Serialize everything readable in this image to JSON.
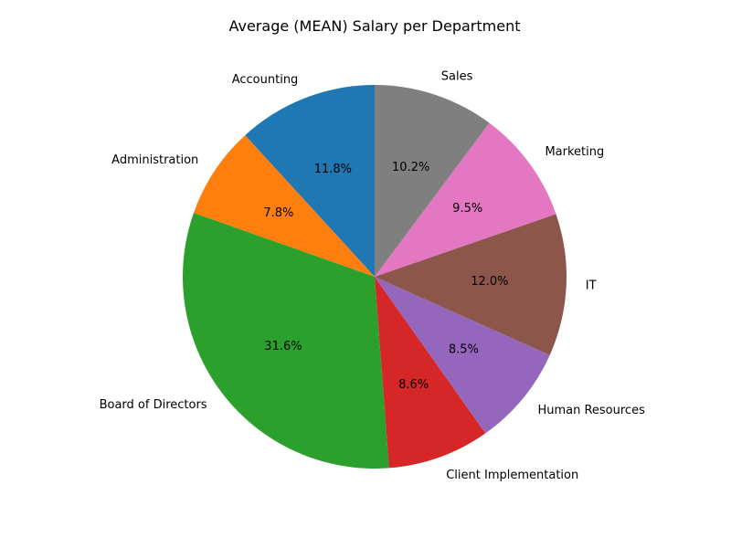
{
  "chart_data": {
    "type": "pie",
    "title": "Average (MEAN) Salary per Department",
    "start_angle_deg": 90,
    "direction": "counterclockwise",
    "legend": "none",
    "slices": [
      {
        "label": "Accounting",
        "value": 11.8,
        "pct_label": "11.8%",
        "color": "#1f77b4"
      },
      {
        "label": "Administration",
        "value": 7.8,
        "pct_label": "7.8%",
        "color": "#ff7f0e"
      },
      {
        "label": "Board of Directors",
        "value": 31.6,
        "pct_label": "31.6%",
        "color": "#2ca02c"
      },
      {
        "label": "Client Implementation",
        "value": 8.6,
        "pct_label": "8.6%",
        "color": "#d62728"
      },
      {
        "label": "Human Resources",
        "value": 8.5,
        "pct_label": "8.5%",
        "color": "#9467bd"
      },
      {
        "label": "IT",
        "value": 12.0,
        "pct_label": "12.0%",
        "color": "#8c564b"
      },
      {
        "label": "Marketing",
        "value": 9.5,
        "pct_label": "9.5%",
        "color": "#e377c2"
      },
      {
        "label": "Sales",
        "value": 10.2,
        "pct_label": "10.2%",
        "color": "#7f7f7f"
      }
    ]
  }
}
